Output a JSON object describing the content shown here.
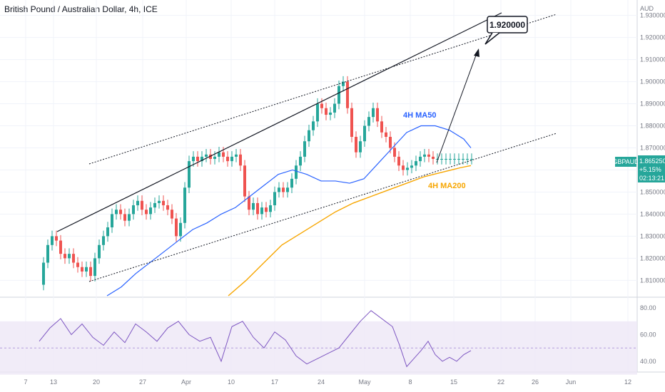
{
  "title": "British Pound / Australian Dollar, 4h, ICE",
  "colors": {
    "up": "#26a69a",
    "down": "#ef5350",
    "ma50": "#2962ff",
    "ma200": "#f7a600",
    "rsi": "#7e57c2",
    "rsi_band": "#ede7f6",
    "badge": "#26a69a",
    "grid": "#f0f3fa"
  },
  "chart_data": {
    "type": "line",
    "symbol": "GBPAUD",
    "currency": "AUD",
    "price_axis_ticks": [
      "1.930000",
      "1.920000",
      "1.910000",
      "1.900000",
      "1.890000",
      "1.880000",
      "1.870000",
      "1.860000",
      "1.850000",
      "1.840000",
      "1.830000",
      "1.820000",
      "1.810000"
    ],
    "price_ylim": [
      1.803,
      1.937
    ],
    "date_axis_ticks": [
      "7",
      "13",
      "20",
      "27",
      "Apr",
      "10",
      "17",
      "24",
      "May",
      "8",
      "15",
      "22",
      "26",
      "Jun",
      "12"
    ],
    "rsi_axis_ticks": [
      "80.00",
      "60.00",
      "40.00"
    ],
    "rsi_ylim": [
      33,
      87
    ],
    "rsi_band": [
      30,
      70
    ],
    "last_price": {
      "label": "GBPAUD",
      "value": "1.865250",
      "change": "+5.15%",
      "countdown": "02:13:21"
    },
    "price_series": {
      "x": [
        0,
        6,
        12,
        18,
        24,
        30,
        36,
        42,
        48,
        54,
        60,
        66,
        72,
        78,
        84,
        90,
        96,
        102,
        108,
        114,
        120,
        126,
        132,
        138,
        144,
        150,
        156,
        162,
        168,
        174,
        180,
        186,
        192,
        198,
        204,
        210,
        216,
        222,
        228,
        234,
        240,
        246,
        252,
        258,
        264,
        270,
        276,
        282,
        288,
        294,
        300,
        306,
        312,
        318,
        324,
        330,
        336,
        342,
        348,
        354,
        360,
        366,
        372,
        378,
        384,
        390,
        396,
        402,
        408,
        414,
        420,
        426,
        432,
        438,
        444,
        450,
        456,
        462,
        468,
        474,
        480,
        486,
        492,
        498,
        504,
        510,
        516,
        522,
        528,
        534,
        540,
        546,
        552,
        558,
        564,
        570,
        576,
        582,
        588,
        594,
        600,
        606
      ],
      "y": [
        1.808,
        1.818,
        1.826,
        1.83,
        1.828,
        1.822,
        1.82,
        1.822,
        1.818,
        1.816,
        1.814,
        1.816,
        1.812,
        1.82,
        1.826,
        1.83,
        1.834,
        1.84,
        1.842,
        1.84,
        1.837,
        1.84,
        1.844,
        1.846,
        1.842,
        1.84,
        1.843,
        1.845,
        1.846,
        1.844,
        1.842,
        1.838,
        1.83,
        1.836,
        1.852,
        1.864,
        1.866,
        1.864,
        1.866,
        1.867,
        1.865,
        1.866,
        1.868,
        1.866,
        1.864,
        1.866,
        1.867,
        1.862,
        1.848,
        1.842,
        1.845,
        1.84,
        1.843,
        1.841,
        1.844,
        1.85,
        1.852,
        1.85,
        1.852,
        1.856,
        1.862,
        1.866,
        1.873,
        1.878,
        1.882,
        1.89,
        1.888,
        1.885,
        1.886,
        1.89,
        1.898,
        1.9,
        1.888,
        1.875,
        1.868,
        1.873,
        1.88,
        1.884,
        1.888,
        1.882,
        1.877,
        1.875,
        1.87,
        1.866,
        1.862,
        1.86,
        1.861,
        1.862,
        1.864,
        1.866,
        1.867,
        1.866,
        1.865,
        1.865,
        1.865,
        1.865,
        1.865,
        1.865,
        1.865,
        1.865,
        1.865,
        1.865
      ]
    },
    "ma50": {
      "name": "4H MA50",
      "x": [
        95,
        115,
        135,
        155,
        175,
        195,
        215,
        235,
        255,
        275,
        295,
        315,
        335,
        355,
        375,
        395,
        415,
        435,
        455,
        475,
        495,
        515,
        535,
        555,
        575,
        595,
        605
      ],
      "y": [
        1.803,
        1.807,
        1.813,
        1.818,
        1.823,
        1.828,
        1.833,
        1.836,
        1.84,
        1.843,
        1.848,
        1.853,
        1.858,
        1.86,
        1.858,
        1.855,
        1.855,
        1.854,
        1.856,
        1.863,
        1.87,
        1.877,
        1.88,
        1.88,
        1.878,
        1.874,
        1.87
      ]
    },
    "ma200": {
      "name": "4H MA200",
      "x": [
        265,
        290,
        315,
        340,
        365,
        390,
        415,
        440,
        465,
        490,
        515,
        540,
        565,
        590,
        605
      ],
      "y": [
        1.803,
        1.81,
        1.818,
        1.826,
        1.831,
        1.836,
        1.841,
        1.845,
        1.848,
        1.851,
        1.854,
        1.857,
        1.859,
        1.861,
        1.862
      ]
    },
    "rsi_series": {
      "x": [
        0,
        15,
        30,
        45,
        60,
        75,
        90,
        105,
        120,
        135,
        150,
        165,
        180,
        195,
        210,
        225,
        240,
        255,
        270,
        285,
        300,
        315,
        330,
        345,
        360,
        375,
        390,
        405,
        420,
        435,
        450,
        465,
        480,
        495,
        505,
        515,
        525,
        535,
        545,
        555,
        565,
        575,
        585,
        595,
        605
      ],
      "y": [
        55,
        65,
        72,
        60,
        68,
        58,
        52,
        62,
        54,
        68,
        62,
        55,
        65,
        70,
        60,
        55,
        58,
        40,
        66,
        70,
        58,
        50,
        62,
        56,
        44,
        38,
        42,
        46,
        50,
        60,
        70,
        78,
        72,
        66,
        52,
        36,
        42,
        48,
        55,
        45,
        40,
        43,
        40,
        45,
        48
      ]
    },
    "callout_target": "1.920000"
  }
}
